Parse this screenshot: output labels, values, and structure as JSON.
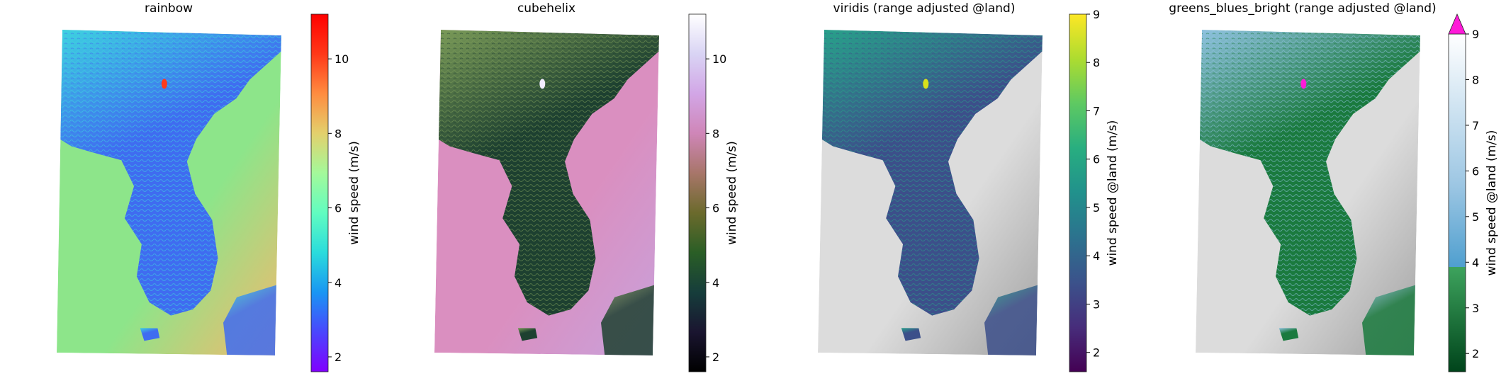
{
  "panels": [
    {
      "title": "rainbow",
      "colormap": "rainbow",
      "colorbar_label": "wind speed (m/s)",
      "ticks": [
        "2",
        "4",
        "6",
        "8",
        "10"
      ],
      "range": [
        1.6,
        11.2
      ],
      "extend_max": false,
      "ocean_mode": "colored",
      "colors": {
        "ocean": "#8de58a",
        "ocean_warm": "#f5b76c",
        "land_low": "#3f6cf0",
        "land_high": "#3dd1e0",
        "peak": "#ff3a1a"
      }
    },
    {
      "title": "cubehelix",
      "colormap": "cubehelix",
      "colorbar_label": "wind speed (m/s)",
      "ticks": [
        "2",
        "4",
        "6",
        "8",
        "10"
      ],
      "range": [
        1.6,
        11.2
      ],
      "extend_max": false,
      "ocean_mode": "colored",
      "colors": {
        "ocean": "#da8fc0",
        "ocean_warm": "#c8a2dc",
        "land_low": "#1d4030",
        "land_high": "#7a9a58",
        "peak": "#f2ecff"
      }
    },
    {
      "title": "viridis (range adjusted @land)",
      "colormap": "viridis",
      "colorbar_label": "wind speed @land (m/s)",
      "ticks": [
        "2",
        "3",
        "4",
        "5",
        "6",
        "7",
        "8",
        "9"
      ],
      "range": [
        1.6,
        9.0
      ],
      "extend_max": false,
      "ocean_mode": "gray",
      "colors": {
        "ocean": "#dcdcdc",
        "ocean_warm": "#a0a0a0",
        "land_low": "#3c4f8a",
        "land_high": "#28a08a",
        "peak": "#d8e21a"
      }
    },
    {
      "title": "greens_blues_bright (range adjusted @land)",
      "colormap": "greens_blues",
      "colorbar_label": "wind speed @land (m/s)",
      "ticks": [
        "2",
        "3",
        "4",
        "5",
        "6",
        "7",
        "8",
        "9"
      ],
      "range": [
        1.6,
        9.0
      ],
      "extend_max": true,
      "ocean_mode": "gray",
      "colors": {
        "ocean": "#dcdcdc",
        "ocean_warm": "#a0a0a0",
        "land_low": "#1a7a3e",
        "land_high": "#8fc2e0",
        "peak": "#ff1ad8"
      }
    }
  ]
}
